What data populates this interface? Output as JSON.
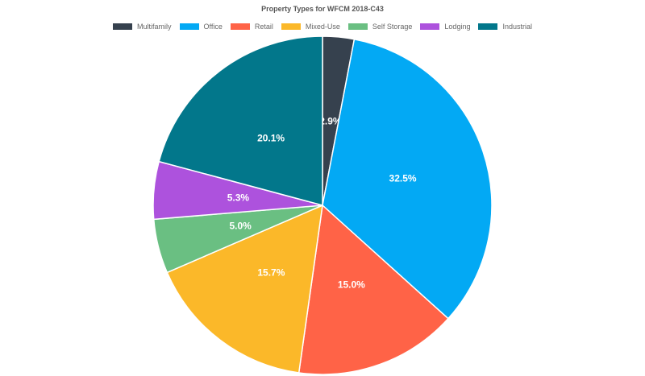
{
  "chart_data": {
    "type": "pie",
    "title": "Property Types for WFCM 2018-C43",
    "legend_position": "top",
    "slices": [
      {
        "name": "Multifamily",
        "value": 2.9,
        "label": "2.9%",
        "color": "#36414e"
      },
      {
        "name": "Office",
        "value": 32.5,
        "label": "32.5%",
        "color": "#03a9f4"
      },
      {
        "name": "Retail",
        "value": 15.0,
        "label": "15.0%",
        "color": "#ff6347"
      },
      {
        "name": "Mixed-Use",
        "value": 15.7,
        "label": "15.7%",
        "color": "#fbb829"
      },
      {
        "name": "Self Storage",
        "value": 5.0,
        "label": "5.0%",
        "color": "#6abf82"
      },
      {
        "name": "Lodging",
        "value": 5.3,
        "label": "5.3%",
        "color": "#ad52dd"
      },
      {
        "name": "Industrial",
        "value": 20.1,
        "label": "20.1%",
        "color": "#02778b"
      }
    ]
  }
}
